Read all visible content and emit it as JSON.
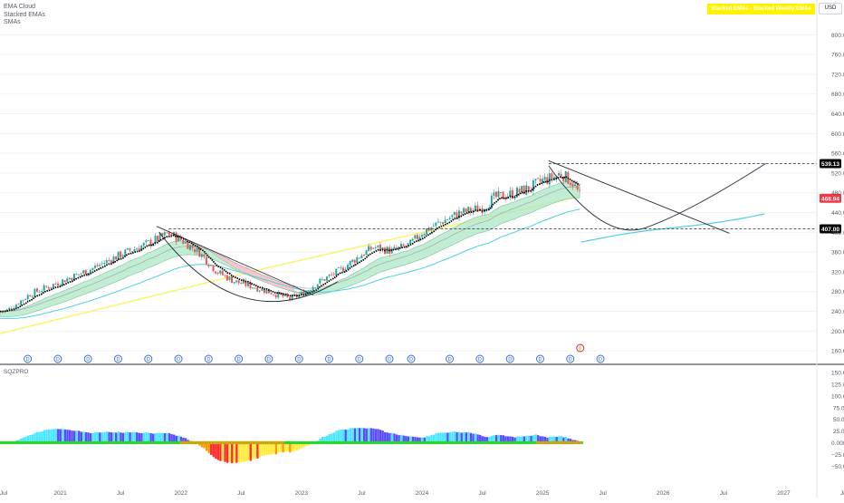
{
  "header": {
    "indicators": [
      "EMA Cloud",
      "Stacked EMAs",
      "SMAs"
    ],
    "currency_badge": "USD",
    "legend_banner": "Stacked EMAs · Stacked Weekly EMAs"
  },
  "oscillator": {
    "label": "SQZPRO"
  },
  "colors": {
    "up_candle": "#26a69a",
    "down_candle": "#ef5350",
    "cloud_fill": "#a5e6c0",
    "cloud_fill_bearish": "#f7b7c0",
    "ema_fast": "#000000",
    "ema_line_slow": "#4dd0e1",
    "sma_long": "#fff176",
    "hist_cyan": "#49e7ff",
    "hist_blue": "#5b4bff",
    "hist_red": "#ff2a2a",
    "hist_orange": "#ff9800",
    "hist_yellow": "#ffeb3b",
    "squeeze_green": "#2cd42c",
    "dividend_marker": "#2962ff",
    "price_tag_bg": "#000000",
    "last_price_tag": "#f23645"
  },
  "chart_data": {
    "type": "candlestick",
    "x_labels": [
      "Jul",
      "2021",
      "Jul",
      "2022",
      "Jul",
      "2023",
      "Jul",
      "2024",
      "Jul",
      "2025",
      "Jul",
      "2026",
      "Jul",
      "2027",
      "Jul"
    ],
    "y_ticks": [
      160,
      200,
      240,
      280,
      320,
      360,
      400,
      440,
      480,
      520,
      560,
      600,
      640,
      680,
      720,
      760,
      800
    ],
    "ylim": [
      140,
      830
    ],
    "price_tags": [
      {
        "label": "539.13",
        "value": 539.13,
        "style": "level"
      },
      {
        "label": "468.94",
        "value": 468.94,
        "style": "last"
      },
      {
        "label": "407.00",
        "value": 407.0,
        "style": "level"
      }
    ],
    "horizontal_levels": [
      539.13,
      407.0
    ],
    "dividend_marker": "D",
    "dividend_count": 20,
    "earnings_marker": "⚡",
    "price_path": [
      [
        2020.55,
        240
      ],
      [
        2020.75,
        275
      ],
      [
        2021.0,
        300
      ],
      [
        2021.25,
        325
      ],
      [
        2021.5,
        355
      ],
      [
        2021.75,
        380
      ],
      [
        2021.9,
        398
      ],
      [
        2022.0,
        385
      ],
      [
        2022.15,
        360
      ],
      [
        2022.3,
        320
      ],
      [
        2022.45,
        300
      ],
      [
        2022.6,
        290
      ],
      [
        2022.75,
        278
      ],
      [
        2022.9,
        265
      ],
      [
        2023.0,
        275
      ],
      [
        2023.15,
        300
      ],
      [
        2023.3,
        320
      ],
      [
        2023.5,
        355
      ],
      [
        2023.6,
        370
      ],
      [
        2023.75,
        362
      ],
      [
        2023.9,
        375
      ],
      [
        2024.0,
        400
      ],
      [
        2024.15,
        420
      ],
      [
        2024.3,
        438
      ],
      [
        2024.5,
        450
      ],
      [
        2024.6,
        470
      ],
      [
        2024.75,
        478
      ],
      [
        2024.9,
        490
      ],
      [
        2025.0,
        505
      ],
      [
        2025.1,
        512
      ],
      [
        2025.15,
        520
      ],
      [
        2025.25,
        500
      ],
      [
        2025.32,
        468.94
      ]
    ],
    "oscillator": {
      "y_ticks": [
        "150.00",
        "125.00",
        "100.00",
        "75.00",
        "50.00",
        "25.00",
        "0.0000",
        "−25.00",
        "−50.00"
      ],
      "ylim": [
        -65,
        160
      ]
    }
  }
}
